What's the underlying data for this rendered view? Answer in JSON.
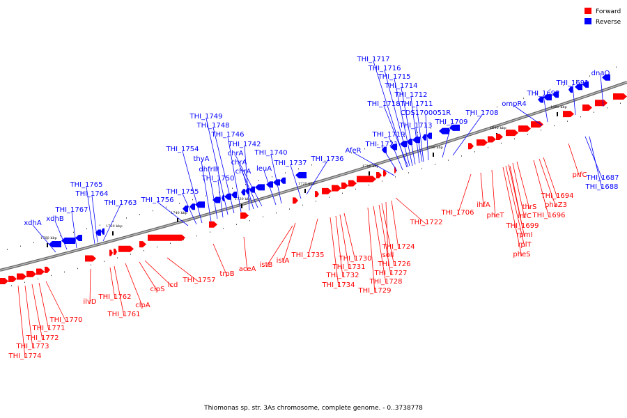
{
  "caption": "Thiomonas sp. str. 3As chromosome, complete genome. - 0..3738778",
  "legend": [
    {
      "label": "Forward",
      "color": "#ff0000"
    },
    {
      "label": "Reverse",
      "color": "#0000ff"
    }
  ],
  "ticks": [
    "1680 kbp",
    "1690 kbp",
    "1700 kbp",
    "1710 kbp",
    "1720 kbp",
    "1730 kbp",
    "1740 kbp",
    "1750 kbp",
    "1760 kbp"
  ],
  "reverse_genes": [
    "dnaQ",
    "THI_1691",
    "THI_1692",
    "ompR4",
    "THI_1708",
    "THI_1709",
    "CDS1700051R",
    "THI_1711",
    "THI_1712",
    "THI_1713",
    "THI_1714",
    "THI_1715",
    "THI_1716",
    "THI_1717",
    "THI_1718",
    "THI_1719",
    "THI_1721",
    "AfeR",
    "THI_1736",
    "THI_1737",
    "THI_1740",
    "leuA",
    "chrA",
    "chrA",
    "chrA",
    "THI_1742",
    "THI_1746",
    "THI_1748",
    "THI_1749",
    "THI_1750",
    "dhfrIII",
    "thyA",
    "THI_1754",
    "THI_1755",
    "THI_1756",
    "THI_1763",
    "THI_1764",
    "THI_1765",
    "THI_1767",
    "xdhB",
    "xdhA",
    "THI_1687",
    "THI_1688"
  ],
  "forward_genes": [
    "prfC",
    "THI_1694",
    "phaZ3",
    "THI_1696",
    "thrS",
    "infC",
    "rpmI",
    "rplT",
    "pheS",
    "THI_1699",
    "pheT",
    "ihfA",
    "THI_1706",
    "THI_1722",
    "THI_1724",
    "soll",
    "THI_1726",
    "THI_1727",
    "THI_1728",
    "THI_1729",
    "THI_1730",
    "THI_1731",
    "THI_1732",
    "THI_1734",
    "THI_1735",
    "istA",
    "istB",
    "aceA",
    "trpB",
    "THI_1757",
    "icd",
    "clpS",
    "clpA",
    "THI_1761",
    "THI_1762",
    "ilvD",
    "THI_1770",
    "THI_1771",
    "THI_1772",
    "THI_1773",
    "THI_1774"
  ]
}
